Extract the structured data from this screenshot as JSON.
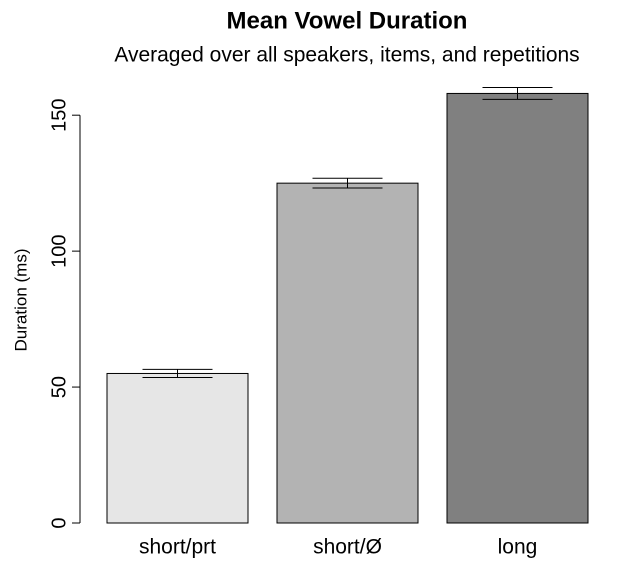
{
  "chart_data": {
    "type": "bar",
    "title": "Mean Vowel Duration",
    "subtitle": "Averaged over all speakers, items, and repetitions",
    "y_label": "Duration (ms)",
    "categories": [
      "short/prt",
      "short/Ø",
      "long"
    ],
    "values": [
      55,
      125,
      158
    ],
    "errors": [
      1.5,
      1.8,
      2.2
    ],
    "colors": [
      "#e6e6e6",
      "#b3b3b3",
      "#808080"
    ],
    "ylim": [
      0,
      160
    ],
    "yticks": [
      0,
      50,
      100,
      150
    ],
    "grid": false
  }
}
